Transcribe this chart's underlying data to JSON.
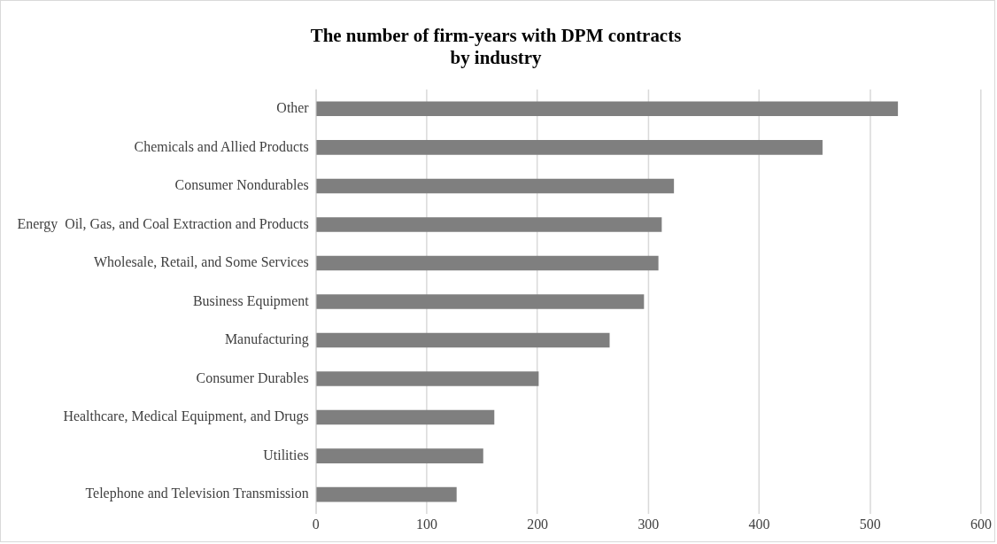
{
  "chart_data": {
    "type": "bar",
    "orientation": "horizontal",
    "title": "The number of firm-years with DPM contracts\nby industry",
    "categories": [
      "Other",
      "Chemicals and Allied Products",
      "Consumer Nondurables",
      "Energy  Oil, Gas, and Coal Extraction and Products",
      "Wholesale, Retail, and Some Services",
      "Business Equipment",
      "Manufacturing",
      "Consumer Durables",
      "Healthcare, Medical Equipment, and Drugs",
      "Utilities",
      "Telephone and Television Transmission"
    ],
    "values": [
      525,
      457,
      323,
      312,
      309,
      296,
      265,
      201,
      161,
      151,
      127
    ],
    "color": "#7f7f7f",
    "xlim": [
      0,
      600
    ],
    "xticks": [
      0,
      100,
      200,
      300,
      400,
      500,
      600
    ],
    "grid": "x",
    "legend": false
  }
}
